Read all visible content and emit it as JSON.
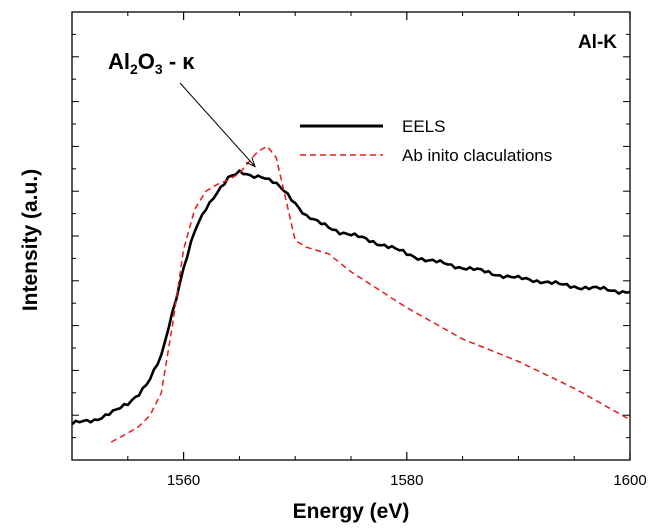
{
  "chart_data": {
    "type": "line",
    "title": "",
    "xlabel": "Energy (eV)",
    "ylabel": "Intensity (a.u.)",
    "xlim": [
      1550,
      1600
    ],
    "ylim": [
      0,
      1
    ],
    "x_ticks": [
      1560,
      1580,
      1600
    ],
    "x_tick_labels": [
      "1560",
      "1580",
      "1600"
    ],
    "y_tick_labels_shown": false,
    "grid": false,
    "legend_position": "top-right",
    "corner_label": "Al-K",
    "annotation": {
      "base1": "Al",
      "sub1": "2",
      "base2": "O",
      "sub2": "3",
      "rest": " - κ",
      "points_to": {
        "x": 1566.4,
        "y": 0.655
      }
    },
    "series": [
      {
        "name": "EELS",
        "color": "#000000",
        "style": "solid",
        "x": [
          1550.0,
          1551.0,
          1552.0,
          1553.0,
          1554.0,
          1555.0,
          1556.0,
          1557.0,
          1558.0,
          1559.0,
          1560.0,
          1561.0,
          1562.0,
          1563.0,
          1564.0,
          1565.0,
          1566.0,
          1567.0,
          1568.0,
          1569.0,
          1570.0,
          1571.0,
          1572.0,
          1574.0,
          1576.0,
          1578.0,
          1580.0,
          1582.0,
          1584.0,
          1586.0,
          1588.0,
          1590.0,
          1592.0,
          1594.0,
          1596.0,
          1598.0,
          1600.0
        ],
        "y": [
          0.08,
          0.085,
          0.09,
          0.1,
          0.11,
          0.125,
          0.15,
          0.18,
          0.23,
          0.33,
          0.43,
          0.51,
          0.56,
          0.6,
          0.63,
          0.64,
          0.635,
          0.635,
          0.62,
          0.6,
          0.575,
          0.545,
          0.53,
          0.51,
          0.495,
          0.48,
          0.46,
          0.445,
          0.435,
          0.425,
          0.415,
          0.405,
          0.4,
          0.39,
          0.385,
          0.38,
          0.375
        ]
      },
      {
        "name": "Ab inito claculations",
        "color": "#e41a1c",
        "style": "dashed",
        "x": [
          1553.5,
          1555.0,
          1556.0,
          1557.0,
          1558.0,
          1559.0,
          1560.0,
          1561.0,
          1562.0,
          1563.0,
          1564.0,
          1565.0,
          1566.0,
          1566.7,
          1567.5,
          1568.3,
          1569.0,
          1570.0,
          1571.0,
          1573.0,
          1575.0,
          1580.0,
          1585.0,
          1590.0,
          1595.0,
          1600.0
        ],
        "y": [
          0.04,
          0.06,
          0.075,
          0.1,
          0.15,
          0.3,
          0.47,
          0.56,
          0.6,
          0.615,
          0.625,
          0.64,
          0.67,
          0.69,
          0.7,
          0.675,
          0.6,
          0.49,
          0.475,
          0.46,
          0.42,
          0.34,
          0.27,
          0.22,
          0.16,
          0.09
        ]
      }
    ]
  }
}
